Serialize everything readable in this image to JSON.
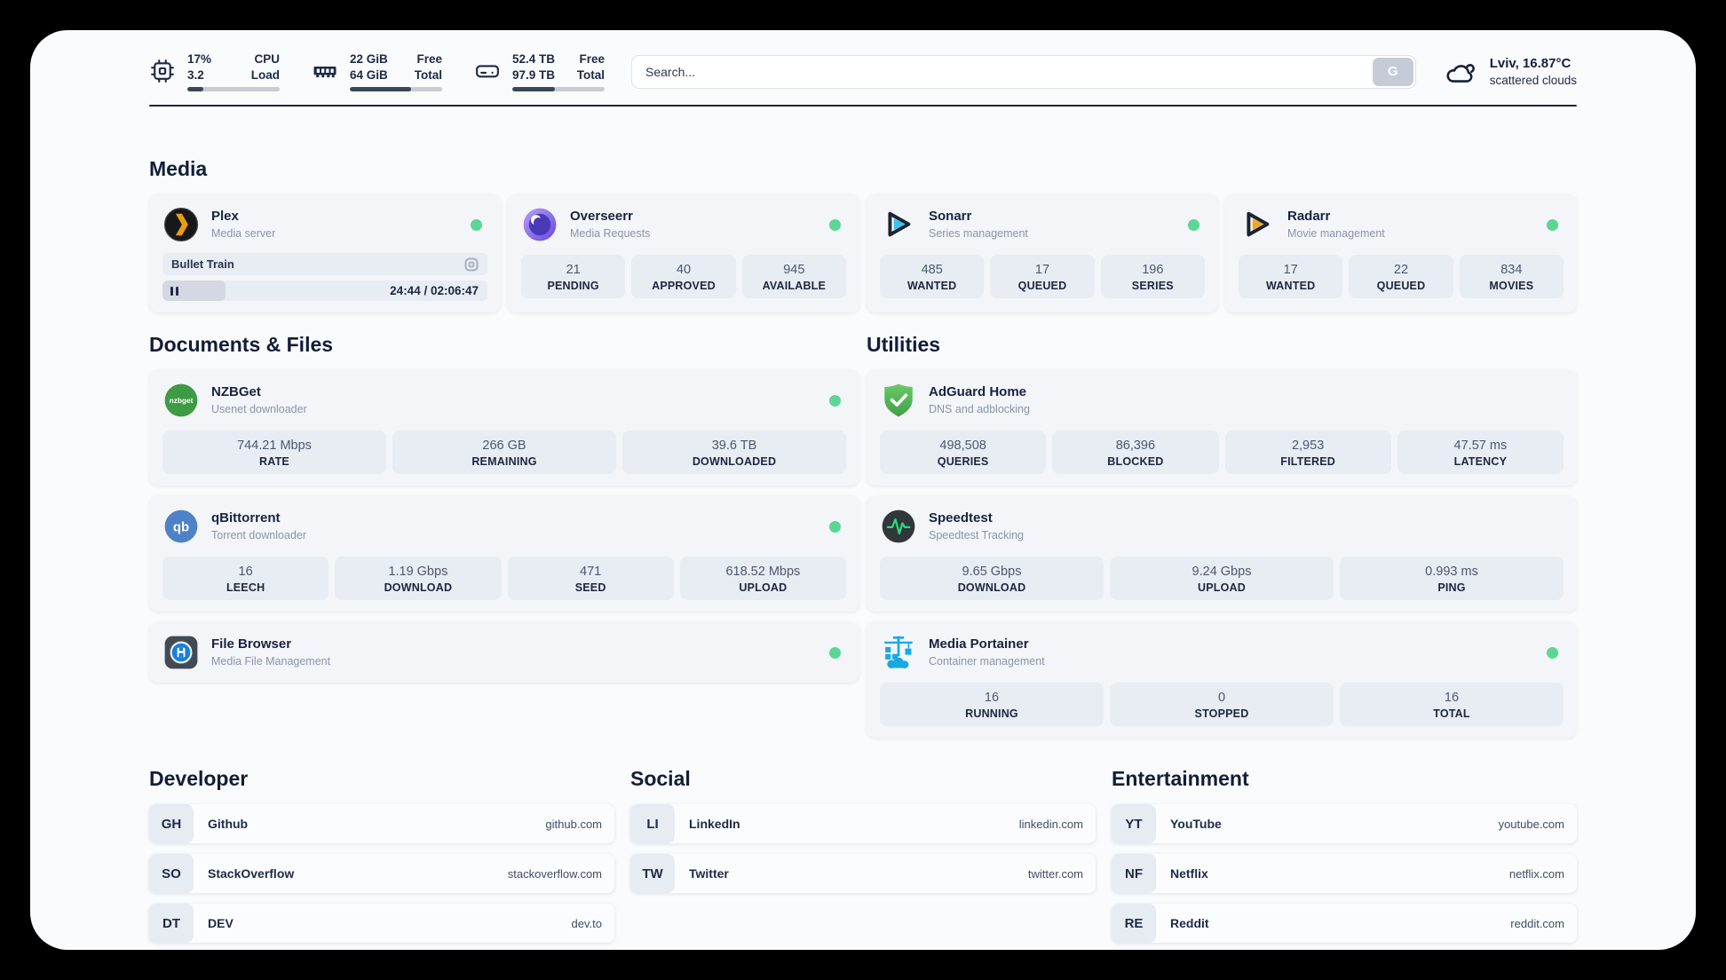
{
  "header": {
    "metrics": [
      {
        "icon": "cpu-icon",
        "values": [
          "17%",
          "3.2"
        ],
        "labels": [
          "CPU",
          "Load"
        ],
        "progress_pct": 17
      },
      {
        "icon": "ram-icon",
        "values": [
          "22 GiB",
          "64 GiB"
        ],
        "labels": [
          "Free",
          "Total"
        ],
        "progress_pct": 66
      },
      {
        "icon": "disk-icon",
        "values": [
          "52.4 TB",
          "97.9 TB"
        ],
        "labels": [
          "Free",
          "Total"
        ],
        "progress_pct": 46
      }
    ],
    "search": {
      "placeholder": "Search...",
      "button_label": "G"
    },
    "weather": {
      "icon": "cloud-icon",
      "location": "Lviv, 16.87°C",
      "condition": "scattered clouds"
    }
  },
  "sections": {
    "media": {
      "title": "Media",
      "apps": [
        {
          "icon": "plex-icon",
          "name": "Plex",
          "description": "Media server",
          "status": "online",
          "now_playing": {
            "title": "Bullet Train",
            "time_display": "24:44 / 02:06:47",
            "progress_pct": 19.5
          }
        },
        {
          "icon": "overseerr-icon",
          "name": "Overseerr",
          "description": "Media Requests",
          "status": "online",
          "stats": [
            {
              "value": "21",
              "label": "PENDING"
            },
            {
              "value": "40",
              "label": "APPROVED"
            },
            {
              "value": "945",
              "label": "AVAILABLE"
            }
          ]
        },
        {
          "icon": "sonarr-icon",
          "name": "Sonarr",
          "description": "Series management",
          "status": "online",
          "stats": [
            {
              "value": "485",
              "label": "WANTED"
            },
            {
              "value": "17",
              "label": "QUEUED"
            },
            {
              "value": "196",
              "label": "SERIES"
            }
          ]
        },
        {
          "icon": "radarr-icon",
          "name": "Radarr",
          "description": "Movie management",
          "status": "online",
          "stats": [
            {
              "value": "17",
              "label": "WANTED"
            },
            {
              "value": "22",
              "label": "QUEUED"
            },
            {
              "value": "834",
              "label": "MOVIES"
            }
          ]
        }
      ]
    },
    "documents": {
      "title": "Documents & Files",
      "apps": [
        {
          "icon": "nzbget-icon",
          "name": "NZBGet",
          "description": "Usenet downloader",
          "status": "online",
          "stats": [
            {
              "value": "744.21 Mbps",
              "label": "RATE"
            },
            {
              "value": "266 GB",
              "label": "REMAINING"
            },
            {
              "value": "39.6 TB",
              "label": "DOWNLOADED"
            }
          ]
        },
        {
          "icon": "qbittorrent-icon",
          "name": "qBittorrent",
          "description": "Torrent downloader",
          "status": "online",
          "stats": [
            {
              "value": "16",
              "label": "LEECH"
            },
            {
              "value": "1.19 Gbps",
              "label": "DOWNLOAD"
            },
            {
              "value": "471",
              "label": "SEED"
            },
            {
              "value": "618.52 Mbps",
              "label": "UPLOAD"
            }
          ]
        },
        {
          "icon": "filebrowser-icon",
          "name": "File Browser",
          "description": "Media File Management",
          "status": "online"
        }
      ]
    },
    "utilities": {
      "title": "Utilities",
      "apps": [
        {
          "icon": "adguard-icon",
          "name": "AdGuard Home",
          "description": "DNS and adblocking",
          "stats": [
            {
              "value": "498,508",
              "label": "QUERIES"
            },
            {
              "value": "86,396",
              "label": "BLOCKED"
            },
            {
              "value": "2,953",
              "label": "FILTERED"
            },
            {
              "value": "47.57 ms",
              "label": "LATENCY"
            }
          ]
        },
        {
          "icon": "speedtest-icon",
          "name": "Speedtest",
          "description": "Speedtest Tracking",
          "stats": [
            {
              "value": "9.65 Gbps",
              "label": "DOWNLOAD"
            },
            {
              "value": "9.24 Gbps",
              "label": "UPLOAD"
            },
            {
              "value": "0.993 ms",
              "label": "PING"
            }
          ]
        },
        {
          "icon": "portainer-icon",
          "name": "Media Portainer",
          "description": "Container management",
          "status": "online",
          "stats": [
            {
              "value": "16",
              "label": "RUNNING"
            },
            {
              "value": "0",
              "label": "STOPPED"
            },
            {
              "value": "16",
              "label": "TOTAL"
            }
          ]
        }
      ]
    },
    "bookmarks": [
      {
        "title": "Developer",
        "links": [
          {
            "abbr": "GH",
            "name": "Github",
            "url": "github.com"
          },
          {
            "abbr": "SO",
            "name": "StackOverflow",
            "url": "stackoverflow.com"
          },
          {
            "abbr": "DT",
            "name": "DEV",
            "url": "dev.to"
          }
        ]
      },
      {
        "title": "Social",
        "links": [
          {
            "abbr": "LI",
            "name": "LinkedIn",
            "url": "linkedin.com"
          },
          {
            "abbr": "TW",
            "name": "Twitter",
            "url": "twitter.com"
          }
        ]
      },
      {
        "title": "Entertainment",
        "links": [
          {
            "abbr": "YT",
            "name": "YouTube",
            "url": "youtube.com"
          },
          {
            "abbr": "NF",
            "name": "Netflix",
            "url": "netflix.com"
          },
          {
            "abbr": "RE",
            "name": "Reddit",
            "url": "reddit.com"
          }
        ]
      }
    ]
  },
  "theme": {
    "status_green": "#5bd695",
    "bar_fill": "#3a4758",
    "card_bg": "#f3f5f9",
    "stat_bg": "#e8ecf3"
  }
}
